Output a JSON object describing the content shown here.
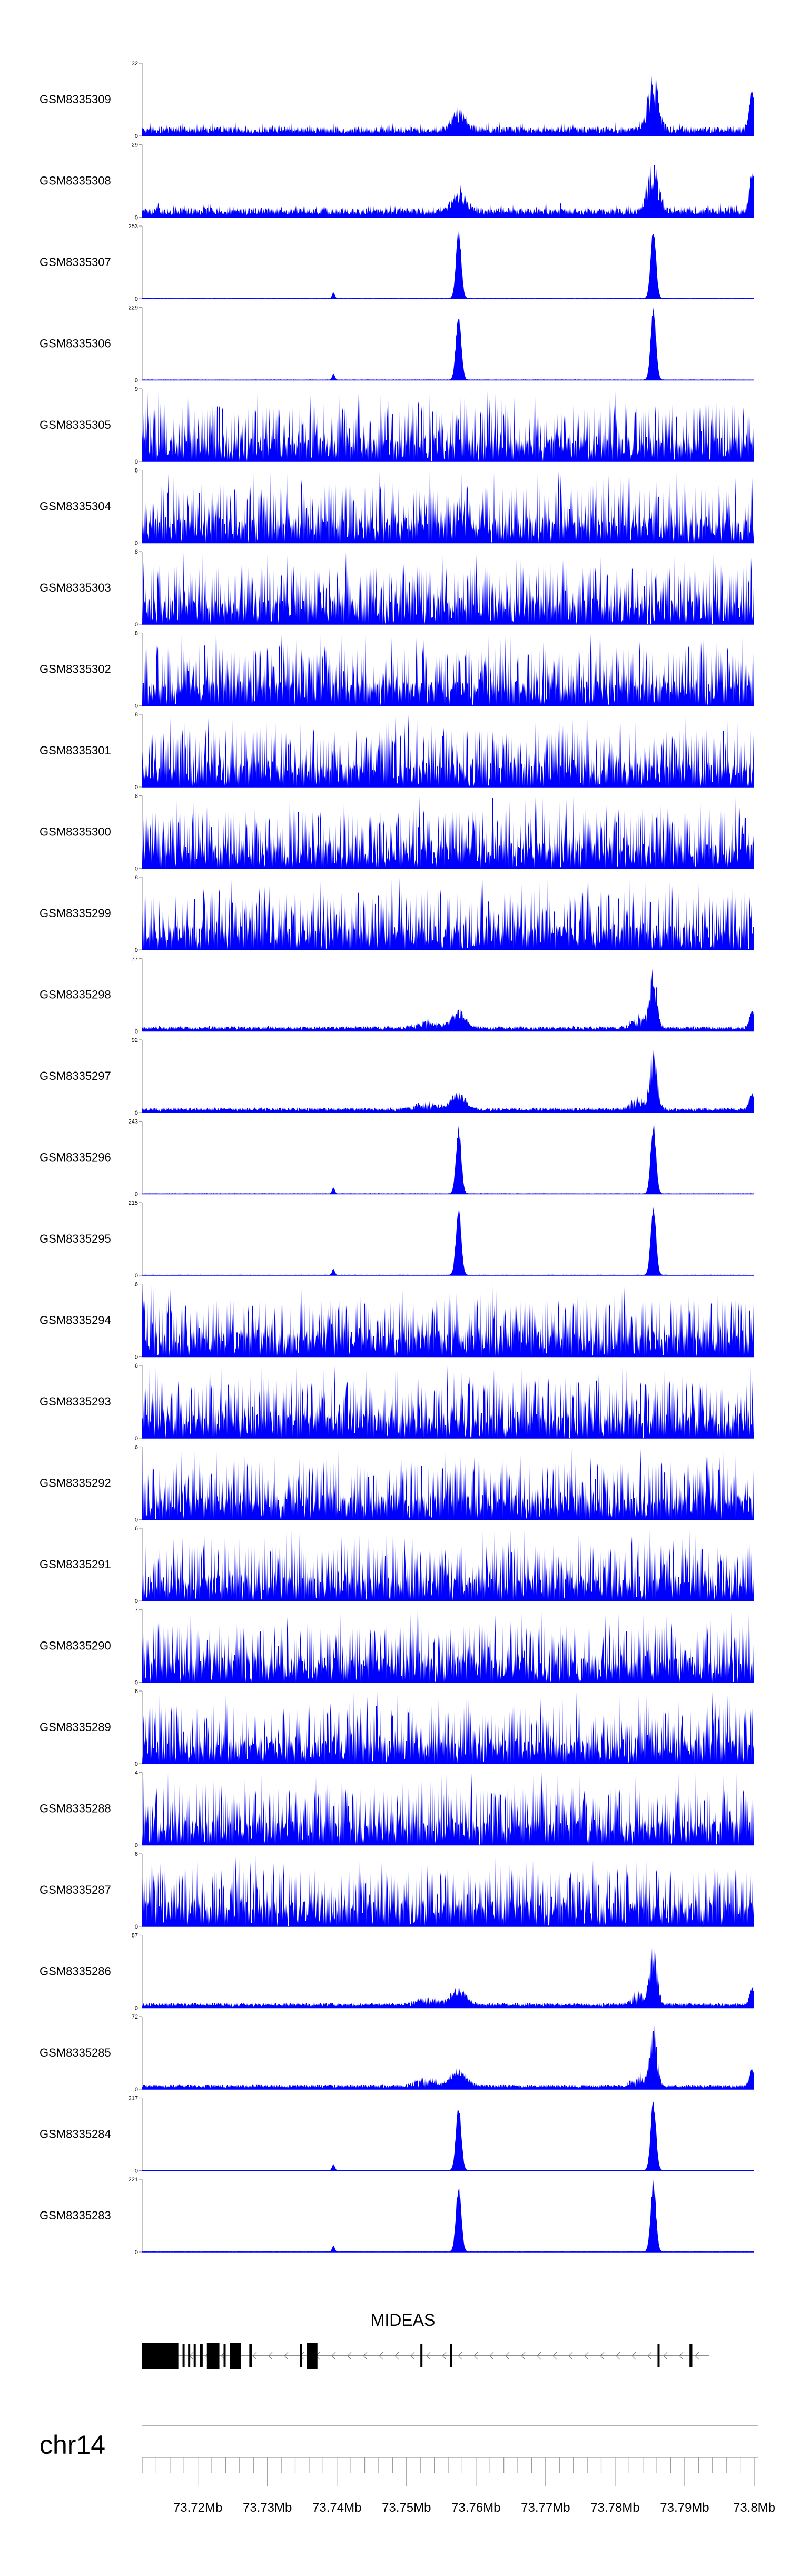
{
  "chart_data": {
    "type": "area",
    "title": "",
    "xlabel": "",
    "ylabel": "",
    "region": "chr14",
    "color": "#0000ff",
    "xlim": [
      73712000,
      73800000
    ],
    "x_ticks": [
      "73.72Mb",
      "73.73Mb",
      "73.74Mb",
      "73.75Mb",
      "73.76Mb",
      "73.77Mb",
      "73.78Mb",
      "73.79Mb",
      "73.8Mb"
    ],
    "x_tick_values": [
      73720000,
      73730000,
      73740000,
      73750000,
      73760000,
      73770000,
      73780000,
      73790000,
      73800000
    ],
    "peak_regions_mb": [
      73.7575,
      73.7855
    ],
    "tracks": [
      {
        "name": "GSM8335309",
        "ymax": 32,
        "profile": "bimodal_low"
      },
      {
        "name": "GSM8335308",
        "ymax": 29,
        "profile": "bimodal_low"
      },
      {
        "name": "GSM8335307",
        "ymax": 253,
        "profile": "peaks"
      },
      {
        "name": "GSM8335306",
        "ymax": 229,
        "profile": "peaks"
      },
      {
        "name": "GSM8335305",
        "ymax": 9,
        "profile": "noise"
      },
      {
        "name": "GSM8335304",
        "ymax": 8,
        "profile": "noise"
      },
      {
        "name": "GSM8335303",
        "ymax": 8,
        "profile": "noise"
      },
      {
        "name": "GSM8335302",
        "ymax": 8,
        "profile": "noise"
      },
      {
        "name": "GSM8335301",
        "ymax": 8,
        "profile": "noise"
      },
      {
        "name": "GSM8335300",
        "ymax": 8,
        "profile": "noise"
      },
      {
        "name": "GSM8335299",
        "ymax": 8,
        "profile": "noise"
      },
      {
        "name": "GSM8335298",
        "ymax": 77,
        "profile": "bimodal_mid"
      },
      {
        "name": "GSM8335297",
        "ymax": 92,
        "profile": "bimodal_mid"
      },
      {
        "name": "GSM8335296",
        "ymax": 243,
        "profile": "peaks"
      },
      {
        "name": "GSM8335295",
        "ymax": 215,
        "profile": "peaks"
      },
      {
        "name": "GSM8335294",
        "ymax": 6,
        "profile": "noise"
      },
      {
        "name": "GSM8335293",
        "ymax": 6,
        "profile": "noise"
      },
      {
        "name": "GSM8335292",
        "ymax": 6,
        "profile": "noise"
      },
      {
        "name": "GSM8335291",
        "ymax": 6,
        "profile": "noise"
      },
      {
        "name": "GSM8335290",
        "ymax": 7,
        "profile": "noise"
      },
      {
        "name": "GSM8335289",
        "ymax": 6,
        "profile": "noise"
      },
      {
        "name": "GSM8335288",
        "ymax": 4,
        "profile": "noise"
      },
      {
        "name": "GSM8335287",
        "ymax": 6,
        "profile": "noise"
      },
      {
        "name": "GSM8335286",
        "ymax": 87,
        "profile": "bimodal_mid"
      },
      {
        "name": "GSM8335285",
        "ymax": 72,
        "profile": "bimodal_mid"
      },
      {
        "name": "GSM8335284",
        "ymax": 217,
        "profile": "peaks"
      },
      {
        "name": "GSM8335283",
        "ymax": 221,
        "profile": "peaks"
      }
    ],
    "gene": {
      "name": "MIDEAS",
      "strand": "-",
      "start": 73712000,
      "end": 73793500,
      "exons": [
        [
          73712000,
          73717200
        ],
        [
          73717800,
          73718100
        ],
        [
          73718600,
          73718900
        ],
        [
          73719400,
          73719700
        ],
        [
          73720300,
          73720700
        ],
        [
          73721300,
          73723100
        ],
        [
          73723700,
          73724000
        ],
        [
          73724600,
          73726200
        ],
        [
          73727400,
          73727800
        ],
        [
          73734700,
          73735000
        ],
        [
          73735700,
          73737200
        ],
        [
          73752000,
          73752300
        ],
        [
          73756300,
          73756600
        ],
        [
          73786100,
          73786400
        ],
        [
          73790700,
          73791100
        ]
      ]
    }
  }
}
